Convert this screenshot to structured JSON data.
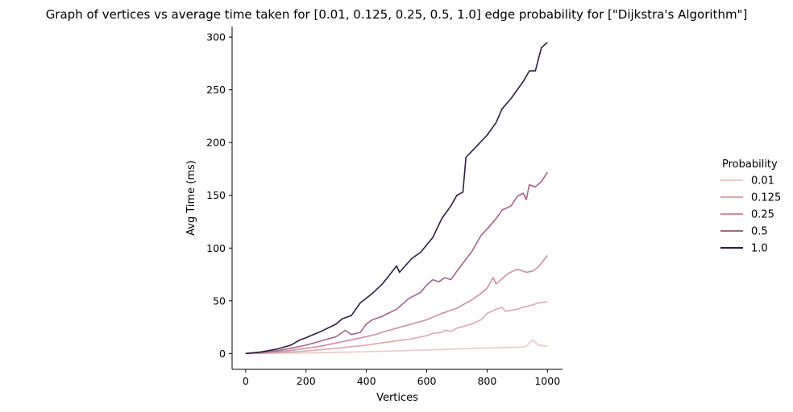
{
  "chart_data": {
    "type": "line",
    "title": "Graph of vertices vs average time taken for [0.01, 0.125, 0.25, 0.5, 1.0] edge probability for [\"Dijkstra's Algorithm\"]",
    "xlabel": "Vertices",
    "ylabel": "Avg Time (ms)",
    "xlim": [
      -45,
      1050
    ],
    "ylim": [
      -15,
      310
    ],
    "xticks": [
      0,
      200,
      400,
      600,
      800,
      1000
    ],
    "yticks": [
      0,
      50,
      100,
      150,
      200,
      250,
      300
    ],
    "grid": false,
    "legend": {
      "title": "Probability",
      "position": "right"
    },
    "series": [
      {
        "name": "0.01",
        "color": "#ebc9c5",
        "points": [
          [
            0,
            0
          ],
          [
            50,
            0
          ],
          [
            100,
            0.3
          ],
          [
            150,
            0.4
          ],
          [
            200,
            0.6
          ],
          [
            250,
            0.9
          ],
          [
            300,
            1.2
          ],
          [
            350,
            1.5
          ],
          [
            400,
            1.8
          ],
          [
            450,
            2.1
          ],
          [
            500,
            2.5
          ],
          [
            550,
            3
          ],
          [
            600,
            3.4
          ],
          [
            650,
            3.8
          ],
          [
            700,
            4.3
          ],
          [
            750,
            4.8
          ],
          [
            800,
            5.3
          ],
          [
            850,
            5.6
          ],
          [
            900,
            6
          ],
          [
            930,
            6.8
          ],
          [
            950,
            13
          ],
          [
            970,
            8
          ],
          [
            1000,
            7
          ]
        ]
      },
      {
        "name": "0.125",
        "color": "#dfa7ad",
        "points": [
          [
            0,
            0
          ],
          [
            50,
            0.3
          ],
          [
            100,
            0.8
          ],
          [
            150,
            1.5
          ],
          [
            200,
            2.5
          ],
          [
            250,
            3.6
          ],
          [
            300,
            5
          ],
          [
            350,
            6.5
          ],
          [
            400,
            8
          ],
          [
            450,
            10
          ],
          [
            500,
            12
          ],
          [
            550,
            14
          ],
          [
            600,
            17
          ],
          [
            620,
            19
          ],
          [
            650,
            20
          ],
          [
            660,
            22
          ],
          [
            680,
            21
          ],
          [
            700,
            24
          ],
          [
            750,
            28
          ],
          [
            780,
            32
          ],
          [
            800,
            38
          ],
          [
            830,
            42
          ],
          [
            850,
            44
          ],
          [
            860,
            40
          ],
          [
            900,
            42
          ],
          [
            920,
            44
          ],
          [
            950,
            46
          ],
          [
            970,
            48
          ],
          [
            1000,
            49
          ]
        ]
      },
      {
        "name": "0.25",
        "color": "#cd8fa3",
        "points": [
          [
            0,
            0
          ],
          [
            50,
            0.5
          ],
          [
            100,
            1.5
          ],
          [
            150,
            3
          ],
          [
            200,
            5
          ],
          [
            250,
            7
          ],
          [
            300,
            10
          ],
          [
            350,
            13
          ],
          [
            400,
            16
          ],
          [
            430,
            18
          ],
          [
            450,
            20
          ],
          [
            500,
            24
          ],
          [
            550,
            28
          ],
          [
            600,
            32
          ],
          [
            650,
            38
          ],
          [
            700,
            43
          ],
          [
            750,
            51
          ],
          [
            780,
            57
          ],
          [
            800,
            62
          ],
          [
            820,
            72
          ],
          [
            830,
            66
          ],
          [
            850,
            71
          ],
          [
            870,
            76
          ],
          [
            900,
            80
          ],
          [
            930,
            77
          ],
          [
            950,
            78
          ],
          [
            970,
            82
          ],
          [
            1000,
            93
          ]
        ]
      },
      {
        "name": "0.5",
        "color": "#a3648b",
        "points": [
          [
            0,
            0
          ],
          [
            50,
            1
          ],
          [
            100,
            2.5
          ],
          [
            150,
            5
          ],
          [
            200,
            8
          ],
          [
            250,
            12
          ],
          [
            300,
            16
          ],
          [
            330,
            22
          ],
          [
            350,
            18
          ],
          [
            380,
            20
          ],
          [
            400,
            28
          ],
          [
            420,
            32
          ],
          [
            450,
            35
          ],
          [
            500,
            42
          ],
          [
            540,
            52
          ],
          [
            560,
            55
          ],
          [
            580,
            58
          ],
          [
            600,
            65
          ],
          [
            620,
            70
          ],
          [
            640,
            68
          ],
          [
            660,
            72
          ],
          [
            680,
            70
          ],
          [
            700,
            78
          ],
          [
            750,
            97
          ],
          [
            780,
            112
          ],
          [
            800,
            118
          ],
          [
            830,
            128
          ],
          [
            850,
            136
          ],
          [
            880,
            140
          ],
          [
            900,
            149
          ],
          [
            920,
            152
          ],
          [
            930,
            146
          ],
          [
            940,
            160
          ],
          [
            960,
            158
          ],
          [
            980,
            163
          ],
          [
            1000,
            172
          ]
        ]
      },
      {
        "name": "1.0",
        "color": "#2d1e3e",
        "points": [
          [
            0,
            0
          ],
          [
            50,
            1.5
          ],
          [
            100,
            4
          ],
          [
            150,
            8
          ],
          [
            180,
            13
          ],
          [
            200,
            15
          ],
          [
            250,
            21
          ],
          [
            300,
            28
          ],
          [
            320,
            33
          ],
          [
            350,
            36
          ],
          [
            380,
            48
          ],
          [
            420,
            57
          ],
          [
            450,
            65
          ],
          [
            470,
            72
          ],
          [
            500,
            83
          ],
          [
            510,
            77
          ],
          [
            550,
            90
          ],
          [
            580,
            96
          ],
          [
            600,
            103
          ],
          [
            620,
            110
          ],
          [
            650,
            128
          ],
          [
            680,
            140
          ],
          [
            700,
            150
          ],
          [
            720,
            153
          ],
          [
            730,
            186
          ],
          [
            750,
            192
          ],
          [
            770,
            198
          ],
          [
            800,
            207
          ],
          [
            830,
            219
          ],
          [
            850,
            232
          ],
          [
            880,
            242
          ],
          [
            900,
            250
          ],
          [
            920,
            258
          ],
          [
            940,
            268
          ],
          [
            960,
            268
          ],
          [
            980,
            290
          ],
          [
            1000,
            295
          ]
        ]
      }
    ]
  }
}
